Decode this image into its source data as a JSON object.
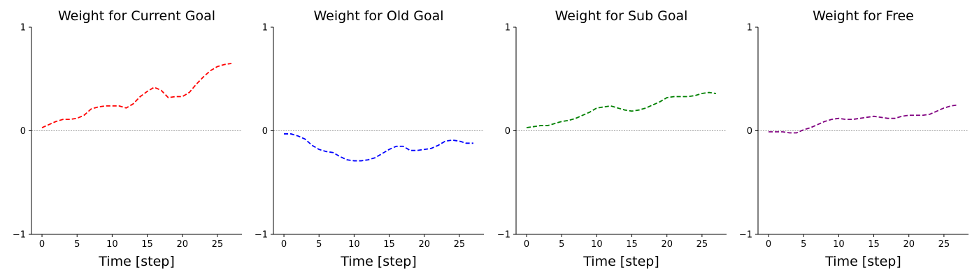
{
  "chart_data": [
    {
      "type": "line",
      "title": "Weight for Current Goal",
      "xlabel": "Time [step]",
      "ylabel": "",
      "xlim": [
        -1.5,
        28.5
      ],
      "ylim": [
        -1,
        1
      ],
      "xticks": [
        0,
        5,
        10,
        15,
        20,
        25
      ],
      "yticks": [
        -1,
        0,
        1
      ],
      "zero_line": true,
      "color": "#ff0000",
      "x": [
        0,
        1,
        2,
        3,
        4,
        5,
        6,
        7,
        8,
        9,
        10,
        11,
        12,
        13,
        14,
        15,
        16,
        17,
        18,
        19,
        20,
        21,
        22,
        23,
        24,
        25,
        26,
        27
      ],
      "values": [
        0.03,
        0.06,
        0.09,
        0.11,
        0.11,
        0.12,
        0.15,
        0.21,
        0.23,
        0.24,
        0.24,
        0.24,
        0.22,
        0.26,
        0.33,
        0.38,
        0.42,
        0.39,
        0.32,
        0.33,
        0.33,
        0.37,
        0.45,
        0.52,
        0.58,
        0.62,
        0.64,
        0.65
      ]
    },
    {
      "type": "line",
      "title": "Weight for Old Goal",
      "xlabel": "Time [step]",
      "ylabel": "",
      "xlim": [
        -1.5,
        28.5
      ],
      "ylim": [
        -1,
        1
      ],
      "xticks": [
        0,
        5,
        10,
        15,
        20,
        25
      ],
      "yticks": [
        -1,
        0,
        1
      ],
      "zero_line": true,
      "color": "#0000ff",
      "x": [
        0,
        1,
        2,
        3,
        4,
        5,
        6,
        7,
        8,
        9,
        10,
        11,
        12,
        13,
        14,
        15,
        16,
        17,
        18,
        19,
        20,
        21,
        22,
        23,
        24,
        25,
        26,
        27
      ],
      "values": [
        -0.03,
        -0.03,
        -0.05,
        -0.08,
        -0.14,
        -0.18,
        -0.2,
        -0.21,
        -0.25,
        -0.28,
        -0.29,
        -0.29,
        -0.28,
        -0.26,
        -0.22,
        -0.18,
        -0.15,
        -0.15,
        -0.19,
        -0.19,
        -0.18,
        -0.17,
        -0.14,
        -0.1,
        -0.09,
        -0.1,
        -0.12,
        -0.12
      ]
    },
    {
      "type": "line",
      "title": "Weight for Sub Goal",
      "xlabel": "Time [step]",
      "ylabel": "",
      "xlim": [
        -1.5,
        28.5
      ],
      "ylim": [
        -1,
        1
      ],
      "xticks": [
        0,
        5,
        10,
        15,
        20,
        25
      ],
      "yticks": [
        -1,
        0,
        1
      ],
      "zero_line": true,
      "color": "#008000",
      "x": [
        0,
        1,
        2,
        3,
        4,
        5,
        6,
        7,
        8,
        9,
        10,
        11,
        12,
        13,
        14,
        15,
        16,
        17,
        18,
        19,
        20,
        21,
        22,
        23,
        24,
        25,
        26,
        27
      ],
      "values": [
        0.03,
        0.04,
        0.05,
        0.05,
        0.07,
        0.09,
        0.1,
        0.12,
        0.15,
        0.18,
        0.22,
        0.23,
        0.24,
        0.22,
        0.2,
        0.19,
        0.2,
        0.22,
        0.25,
        0.28,
        0.32,
        0.33,
        0.33,
        0.33,
        0.34,
        0.36,
        0.37,
        0.36
      ]
    },
    {
      "type": "line",
      "title": "Weight for Free",
      "xlabel": "Time [step]",
      "ylabel": "",
      "xlim": [
        -1.5,
        28.5
      ],
      "ylim": [
        -1,
        1
      ],
      "xticks": [
        0,
        5,
        10,
        15,
        20,
        25
      ],
      "yticks": [
        -1,
        0,
        1
      ],
      "zero_line": true,
      "color": "#800080",
      "x": [
        0,
        1,
        2,
        3,
        4,
        5,
        6,
        7,
        8,
        9,
        10,
        11,
        12,
        13,
        14,
        15,
        16,
        17,
        18,
        19,
        20,
        21,
        22,
        23,
        24,
        25,
        26,
        27
      ],
      "values": [
        -0.01,
        -0.01,
        -0.01,
        -0.02,
        -0.02,
        0.01,
        0.03,
        0.06,
        0.09,
        0.11,
        0.12,
        0.11,
        0.11,
        0.12,
        0.13,
        0.14,
        0.13,
        0.12,
        0.12,
        0.14,
        0.15,
        0.15,
        0.15,
        0.16,
        0.19,
        0.22,
        0.24,
        0.25
      ]
    }
  ]
}
